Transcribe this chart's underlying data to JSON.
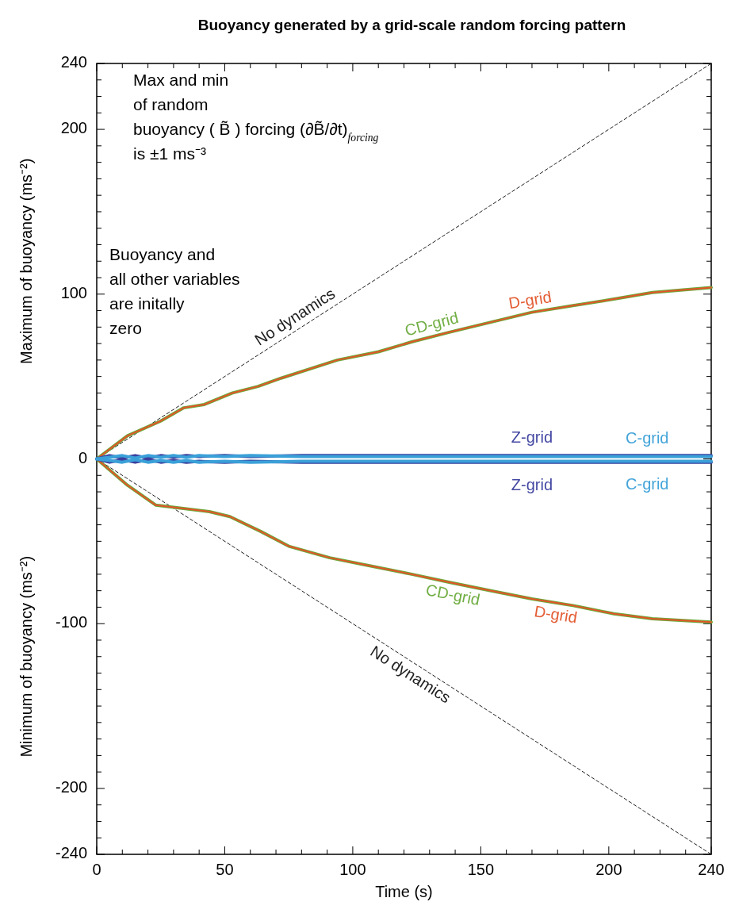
{
  "chart_data": {
    "type": "line",
    "title": "Buoyancy generated by a grid-scale random forcing pattern",
    "xlabel": "Time (s)",
    "ylabel": "Maximum of buoyancy (ms⁻²)",
    "annotations": [
      "Max and min\nof random\nbuoyancy ( B̃ ) forcing (∂B̃/∂t)$_{forcing}$\nis ±1 ms⁻³",
      "Buoyancy and\nall other variables\nare initally\nzero",
      "Minimum of buoyancy (ms⁻²)"
    ],
    "xlim": [
      0,
      240
    ],
    "ylim": [
      -240,
      240
    ],
    "xticks": [
      0,
      {
        "value": 10,
        "label": null
      },
      {
        "value": 20,
        "label": null
      },
      {
        "value": 30,
        "label": null
      },
      {
        "value": 40,
        "label": null
      },
      50,
      {
        "value": 60,
        "label": null
      },
      {
        "value": 70,
        "label": null
      },
      {
        "value": 80,
        "label": null
      },
      {
        "value": 90,
        "label": null
      },
      100,
      {
        "value": 110,
        "label": null
      },
      {
        "value": 120,
        "label": null
      },
      {
        "value": 130,
        "label": null
      },
      {
        "value": 140,
        "label": null
      },
      150,
      {
        "value": 160,
        "label": null
      },
      {
        "value": 170,
        "label": null
      },
      {
        "value": 180,
        "label": null
      },
      {
        "value": 190,
        "label": null
      },
      200,
      {
        "value": 210,
        "label": null
      },
      {
        "value": 220,
        "label": null
      },
      {
        "value": 230,
        "label": null
      },
      240
    ],
    "yticks": [
      -240,
      {
        "value": -230,
        "label": null
      },
      {
        "value": -220,
        "label": null
      },
      {
        "value": -210,
        "label": null
      },
      -200,
      {
        "value": -190,
        "label": null
      },
      {
        "value": -180,
        "label": null
      },
      {
        "value": -170,
        "label": null
      },
      {
        "value": -160,
        "label": null
      },
      {
        "value": -150,
        "label": null
      },
      {
        "value": -140,
        "label": null
      },
      {
        "value": -130,
        "label": null
      },
      {
        "value": -120,
        "label": null
      },
      {
        "value": -110,
        "label": null
      },
      -100,
      {
        "value": -90,
        "label": null
      },
      {
        "value": -80,
        "label": null
      },
      {
        "value": -70,
        "label": null
      },
      {
        "value": -60,
        "label": null
      },
      {
        "value": -50,
        "label": null
      },
      {
        "value": -40,
        "label": null
      },
      {
        "value": -30,
        "label": null
      },
      {
        "value": -20,
        "label": null
      },
      {
        "value": -10,
        "label": null
      },
      0,
      {
        "value": 10,
        "label": null
      },
      {
        "value": 20,
        "label": null
      },
      {
        "value": 30,
        "label": null
      },
      {
        "value": 40,
        "label": null
      },
      {
        "value": 50,
        "label": null
      },
      {
        "value": 60,
        "label": null
      },
      {
        "value": 70,
        "label": null
      },
      {
        "value": 80,
        "label": null
      },
      {
        "value": 90,
        "label": null
      },
      100,
      {
        "value": 110,
        "label": null
      },
      {
        "value": 120,
        "label": null
      },
      {
        "value": 130,
        "label": null
      },
      {
        "value": 140,
        "label": null
      },
      {
        "value": 150,
        "label": null
      },
      {
        "value": 160,
        "label": null
      },
      {
        "value": 170,
        "label": null
      },
      {
        "value": 180,
        "label": null
      },
      {
        "value": 190,
        "label": null
      },
      200,
      {
        "value": 210,
        "label": null
      },
      {
        "value": 220,
        "label": null
      },
      {
        "value": 230,
        "label": null
      },
      240
    ],
    "grid": false,
    "marker": "none",
    "series": [
      {
        "name": "No dynamics",
        "color": "#222222",
        "line_style": "dashed",
        "x": [
          0,
          240
        ],
        "values": [
          0,
          240
        ]
      },
      {
        "name": "No dynamics",
        "color": "#222222",
        "line_style": "dashed",
        "x": [
          0,
          240
        ],
        "values": [
          0,
          -240
        ]
      },
      {
        "name": "CD-grid",
        "color": "#6aaa3a",
        "x": [
          0,
          12,
          25,
          34,
          42,
          53,
          63,
          72,
          94,
          110,
          123,
          138,
          154,
          170,
          186,
          202,
          217,
          240
        ],
        "values": [
          0,
          14,
          23,
          31,
          33,
          40,
          44,
          49,
          60,
          65,
          71,
          77,
          83,
          89,
          93,
          97,
          101,
          104
        ]
      },
      {
        "name": "D-grid",
        "color": "#e2552a",
        "x": [
          0,
          12,
          25,
          34,
          42,
          53,
          63,
          72,
          94,
          110,
          123,
          138,
          154,
          170,
          186,
          202,
          217,
          240
        ],
        "values": [
          0,
          14,
          23,
          31,
          33,
          40,
          44,
          49,
          60,
          65,
          71,
          77,
          83,
          89,
          93,
          97,
          101,
          104
        ]
      },
      {
        "name": "CD-grid",
        "color": "#6aaa3a",
        "x": [
          0,
          12,
          23,
          44,
          52,
          64,
          75,
          91,
          107,
          123,
          138,
          154,
          170,
          186,
          202,
          217,
          240
        ],
        "values": [
          0,
          -16,
          -28,
          -32,
          -35,
          -44,
          -53,
          -60,
          -65,
          -70,
          -75,
          -80,
          -85,
          -89,
          -94,
          -97,
          -99
        ]
      },
      {
        "name": "D-grid",
        "color": "#e2552a",
        "x": [
          0,
          12,
          23,
          44,
          52,
          64,
          75,
          91,
          107,
          123,
          138,
          154,
          170,
          186,
          202,
          217,
          240
        ],
        "values": [
          0,
          -16,
          -28,
          -32,
          -35,
          -44,
          -53,
          -60,
          -65,
          -70,
          -75,
          -80,
          -85,
          -89,
          -94,
          -97,
          -99
        ]
      },
      {
        "name": "Z-grid",
        "color": "#3a3f9e",
        "x": [
          0,
          5,
          10,
          15,
          20,
          25,
          30,
          35,
          40,
          50,
          60,
          80,
          240
        ],
        "values": [
          0,
          2,
          0.5,
          2,
          0.5,
          2,
          1,
          2,
          1.5,
          2,
          1.5,
          2,
          2
        ]
      },
      {
        "name": "C-grid",
        "color": "#3aa0d8",
        "x": [
          0,
          5,
          10,
          15,
          20,
          25,
          30,
          35,
          40,
          50,
          60,
          80,
          240
        ],
        "values": [
          0,
          1,
          2,
          0.5,
          2,
          1,
          2,
          1,
          2,
          1.5,
          2,
          1.5,
          1.5
        ]
      },
      {
        "name": "Z-grid",
        "color": "#3a3f9e",
        "x": [
          0,
          5,
          10,
          15,
          20,
          25,
          30,
          35,
          40,
          50,
          60,
          80,
          240
        ],
        "values": [
          0,
          -2,
          -0.5,
          -2,
          -0.5,
          -2,
          -1,
          -2,
          -1.5,
          -2,
          -1.5,
          -2,
          -2
        ]
      },
      {
        "name": "C-grid",
        "color": "#3aa0d8",
        "x": [
          0,
          5,
          10,
          15,
          20,
          25,
          30,
          35,
          40,
          50,
          60,
          80,
          240
        ],
        "values": [
          0,
          -1,
          -2,
          -0.5,
          -2,
          -1,
          -2,
          -1,
          -2,
          -1.5,
          -2,
          -1.5,
          -1.5
        ]
      }
    ]
  }
}
